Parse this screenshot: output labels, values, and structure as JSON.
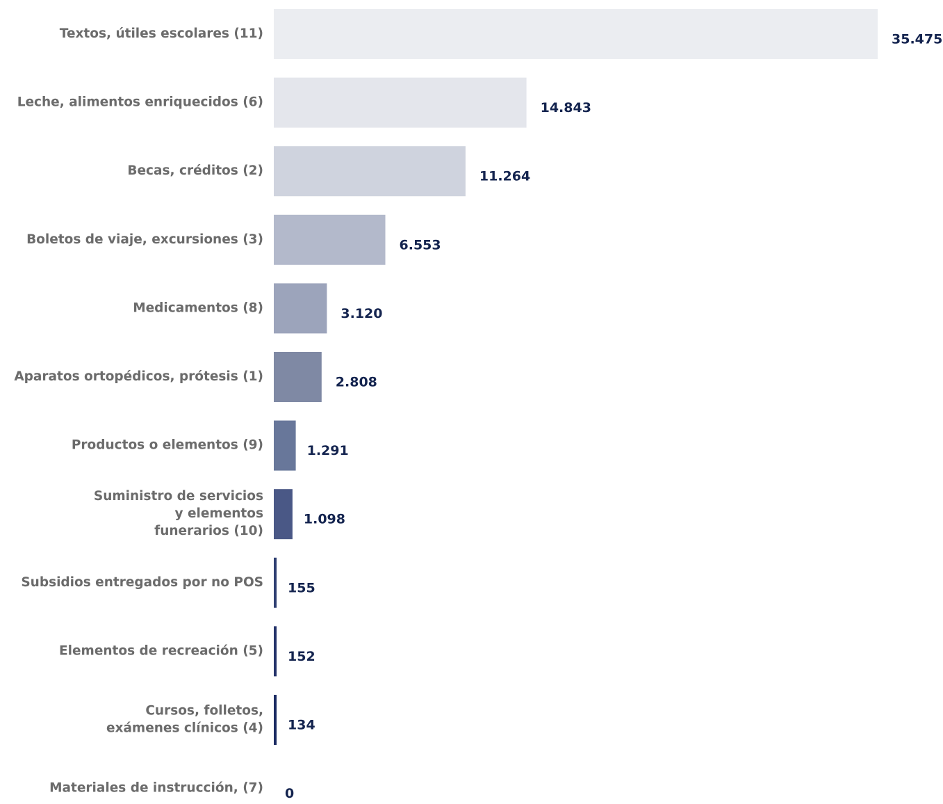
{
  "chart_data": {
    "type": "bar",
    "orientation": "horizontal",
    "categories": [
      [
        "Textos, útiles escolares (11)"
      ],
      [
        "Leche, alimentos enriquecidos (6)"
      ],
      [
        "Becas, créditos (2)"
      ],
      [
        "Boletos de viaje, excursiones (3)"
      ],
      [
        "Medicamentos (8)"
      ],
      [
        "Aparatos ortopédicos, prótesis (1)"
      ],
      [
        "Productos o elementos (9)"
      ],
      [
        "Suministro de servicios",
        "y elementos",
        "funerarios (10)"
      ],
      [
        "Subsidios entregados por no POS"
      ],
      [
        "Elementos de recreación  (5)"
      ],
      [
        "Cursos, folletos,",
        "exámenes clínicos (4)"
      ],
      [
        "Materiales de instrucción, (7)"
      ]
    ],
    "values": [
      35475,
      14843,
      11264,
      6553,
      3120,
      2808,
      1291,
      1098,
      155,
      152,
      134,
      0
    ],
    "value_labels": [
      "35.475",
      "14.843",
      "11.264",
      "6.553",
      "3.120",
      "2.808",
      "1.291",
      "1.098",
      "155",
      "152",
      "134",
      "0"
    ],
    "bar_colors": [
      "#ebedf1",
      "#e4e6ec",
      "#cfd3de",
      "#b3b9cb",
      "#9ca4bb",
      "#7f89a4",
      "#68779a",
      "#4a5886",
      "#2f3f72",
      "#24336a",
      "#1a2a62",
      "#14244f"
    ],
    "xlim": [
      0,
      35475
    ],
    "title": "",
    "xlabel": "",
    "ylabel": "",
    "grid": false,
    "legend": "none"
  }
}
